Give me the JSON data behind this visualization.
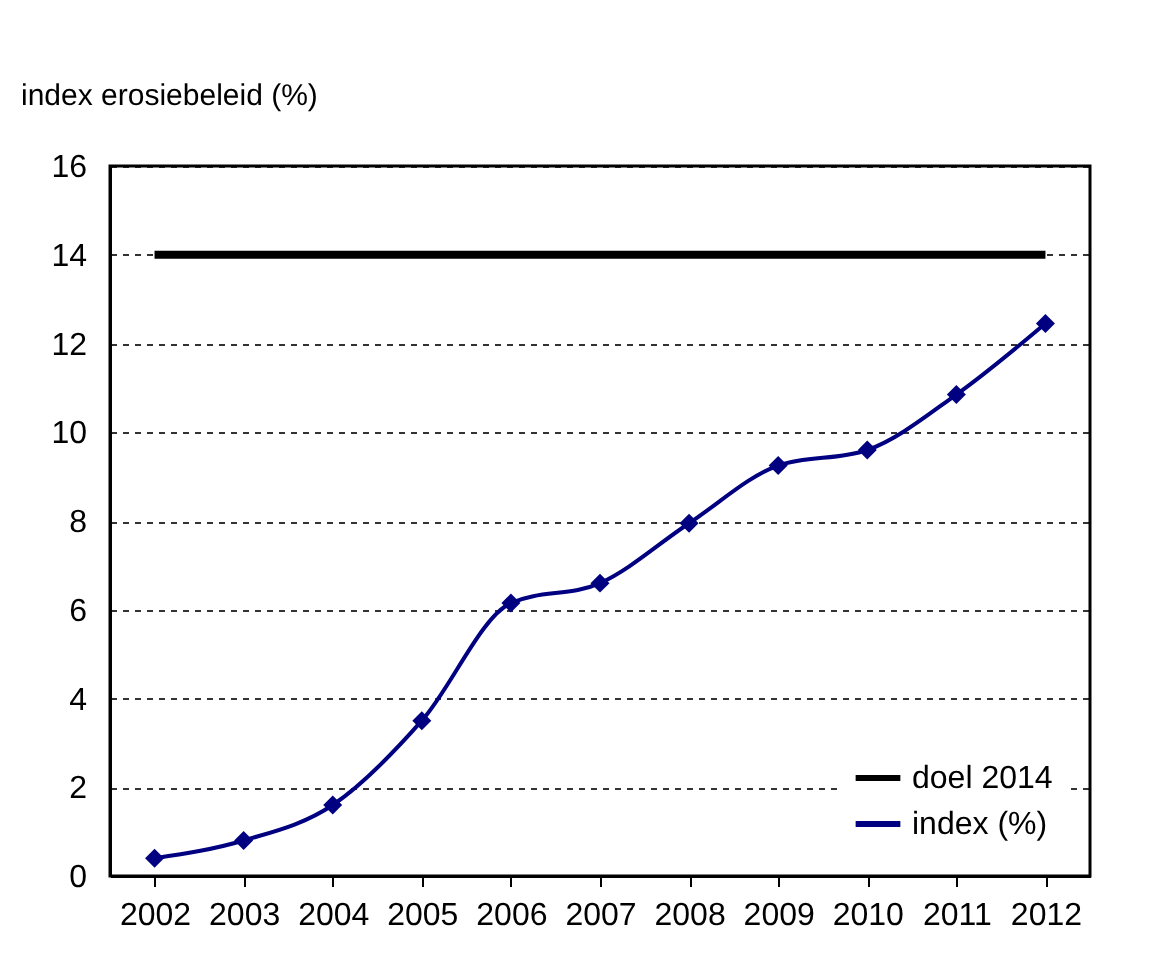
{
  "chart_data": {
    "type": "line",
    "ylabel": "index erosiebeleid (%)",
    "categories": [
      "2002",
      "2003",
      "2004",
      "2005",
      "2006",
      "2007",
      "2008",
      "2009",
      "2010",
      "2011",
      "2012"
    ],
    "series": [
      {
        "name": "doel 2014",
        "color": "#000000",
        "marker": "none",
        "values": [
          14,
          14,
          14,
          14,
          14,
          14,
          14,
          14,
          14,
          14,
          14
        ]
      },
      {
        "name": "index (%)",
        "color": "#000080",
        "marker": "diamond",
        "values": [
          0.4,
          0.8,
          1.6,
          3.5,
          6.15,
          6.6,
          7.95,
          9.25,
          9.6,
          10.85,
          12.45
        ]
      }
    ],
    "ylim": [
      0,
      16
    ],
    "yticks": [
      0,
      2,
      4,
      6,
      8,
      10,
      12,
      14,
      16
    ],
    "grid": "y",
    "legend": "bottom right",
    "line_style": "solid"
  }
}
